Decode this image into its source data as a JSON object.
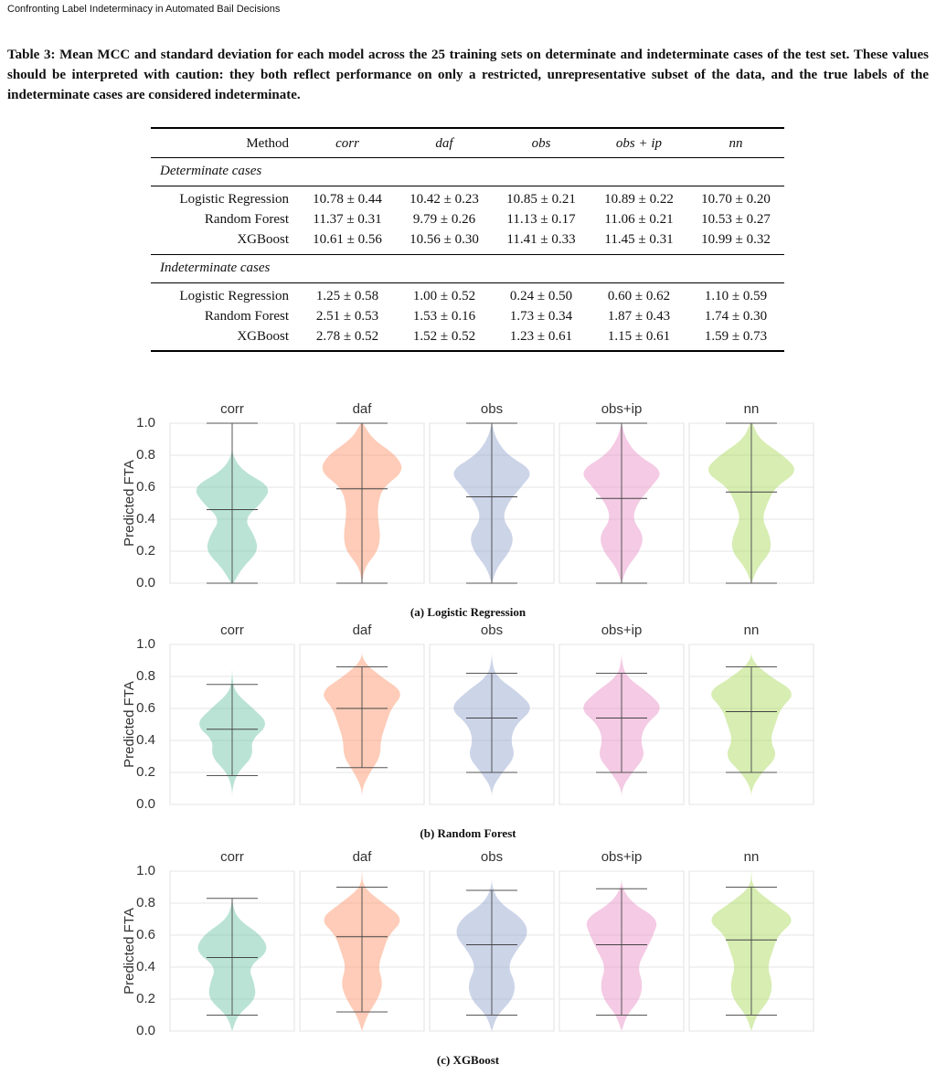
{
  "header": "Confronting Label Indeterminacy in Automated Bail Decisions",
  "table": {
    "caption": "Table 3: Mean MCC and standard deviation for each model across the 25 training sets on determinate and indeterminate cases of the test set. These values should be interpreted with caution: they both reflect performance on only a restricted, unrepresentative subset of the data, and the true labels of the indeterminate cases are considered indeterminate.",
    "columns": [
      "Method",
      "corr",
      "daf",
      "obs",
      "obs + ip",
      "nn"
    ],
    "sections": [
      {
        "title": "Determinate cases",
        "rows": [
          [
            "Logistic Regression",
            "10.78 ± 0.44",
            "10.42 ± 0.23",
            "10.85 ± 0.21",
            "10.89 ± 0.22",
            "10.70 ± 0.20"
          ],
          [
            "Random Forest",
            "11.37 ± 0.31",
            "9.79 ± 0.26",
            "11.13 ± 0.17",
            "11.06 ± 0.21",
            "10.53 ± 0.27"
          ],
          [
            "XGBoost",
            "10.61 ± 0.56",
            "10.56 ± 0.30",
            "11.41 ± 0.33",
            "11.45 ± 0.31",
            "10.99 ± 0.32"
          ]
        ]
      },
      {
        "title": "Indeterminate cases",
        "rows": [
          [
            "Logistic Regression",
            "1.25 ± 0.58",
            "1.00 ± 0.52",
            "0.24 ± 0.50",
            "0.60 ± 0.62",
            "1.10 ± 0.59"
          ],
          [
            "Random Forest",
            "2.51 ± 0.53",
            "1.53 ± 0.16",
            "1.73 ± 0.34",
            "1.87 ± 0.43",
            "1.74 ± 0.30"
          ],
          [
            "XGBoost",
            "2.78 ± 0.52",
            "1.52 ± 0.52",
            "1.23 ± 0.61",
            "1.15 ± 0.61",
            "1.59 ± 0.73"
          ]
        ]
      }
    ]
  },
  "chart_data": [
    {
      "type": "violin",
      "caption": "(a) Logistic Regression",
      "ylabel": "Predicted FTA",
      "categories": [
        "corr",
        "daf",
        "obs",
        "obs+ip",
        "nn"
      ],
      "colors": [
        "#66c2a5",
        "#fc8d62",
        "#8da0cb",
        "#e78ac3",
        "#a6d854"
      ],
      "min": [
        0,
        0,
        0,
        0,
        0
      ],
      "mean": [
        0.46,
        0.59,
        0.54,
        0.53,
        0.57
      ],
      "max": [
        1,
        1,
        1,
        1,
        1
      ],
      "density": [
        [
          0.02,
          0.2,
          0.5,
          0.42,
          0.22,
          0.55,
          0.75,
          0.2,
          0,
          0,
          0
        ],
        [
          0,
          0.05,
          0.3,
          0.35,
          0.3,
          0.3,
          0.4,
          0.8,
          0.65,
          0.2,
          0.02
        ],
        [
          0,
          0.1,
          0.35,
          0.42,
          0.2,
          0.3,
          0.55,
          0.8,
          0.3,
          0.08,
          0
        ],
        [
          0,
          0.1,
          0.35,
          0.42,
          0.2,
          0.3,
          0.55,
          0.8,
          0.3,
          0.08,
          0
        ],
        [
          0,
          0.12,
          0.38,
          0.35,
          0.2,
          0.3,
          0.45,
          0.9,
          0.6,
          0.15,
          0.02
        ]
      ],
      "ylim": [
        0,
        1
      ],
      "yticks": [
        {
          "value": 0,
          "label": "0.0"
        },
        {
          "value": 0.2,
          "label": "0.2"
        },
        {
          "value": 0.4,
          "label": "0.4"
        },
        {
          "value": 0.6,
          "label": "0.6"
        },
        {
          "value": 0.8,
          "label": "0.8"
        },
        {
          "value": 1,
          "label": "1.0"
        }
      ],
      "grid": true
    },
    {
      "type": "violin",
      "caption": "(b) Random Forest",
      "ylabel": "Predicted FTA",
      "categories": [
        "corr",
        "daf",
        "obs",
        "obs+ip",
        "nn"
      ],
      "colors": [
        "#66c2a5",
        "#fc8d62",
        "#8da0cb",
        "#e78ac3",
        "#a6d854"
      ],
      "min": [
        0.18,
        0.23,
        0.2,
        0.2,
        0.2
      ],
      "mean": [
        0.47,
        0.6,
        0.54,
        0.54,
        0.58
      ],
      "max": [
        0.75,
        0.86,
        0.82,
        0.82,
        0.86
      ],
      "density": [
        [
          0,
          0,
          0.1,
          0.4,
          0.35,
          0.7,
          0.4,
          0.05,
          0,
          0,
          0
        ],
        [
          0,
          0,
          0.15,
          0.35,
          0.35,
          0.45,
          0.55,
          0.8,
          0.35,
          0,
          0
        ],
        [
          0,
          0,
          0.2,
          0.45,
          0.35,
          0.45,
          0.8,
          0.5,
          0.08,
          0,
          0
        ],
        [
          0,
          0,
          0.2,
          0.45,
          0.35,
          0.45,
          0.8,
          0.5,
          0.08,
          0,
          0
        ],
        [
          0,
          0,
          0.2,
          0.5,
          0.35,
          0.45,
          0.55,
          0.85,
          0.35,
          0,
          0
        ]
      ],
      "ylim": [
        0,
        1
      ],
      "yticks": [
        {
          "value": 0,
          "label": "0.0"
        },
        {
          "value": 0.2,
          "label": "0.2"
        },
        {
          "value": 0.4,
          "label": "0.4"
        },
        {
          "value": 0.6,
          "label": "0.6"
        },
        {
          "value": 0.8,
          "label": "0.8"
        },
        {
          "value": 1,
          "label": "1.0"
        }
      ],
      "grid": true
    },
    {
      "type": "violin",
      "caption": "(c) XGBoost",
      "ylabel": "Predicted FTA",
      "categories": [
        "corr",
        "daf",
        "obs",
        "obs+ip",
        "nn"
      ],
      "colors": [
        "#66c2a5",
        "#fc8d62",
        "#8da0cb",
        "#e78ac3",
        "#a6d854"
      ],
      "min": [
        0.1,
        0.12,
        0.1,
        0.1,
        0.1
      ],
      "mean": [
        0.46,
        0.59,
        0.54,
        0.54,
        0.57
      ],
      "max": [
        0.83,
        0.9,
        0.88,
        0.89,
        0.9
      ],
      "density": [
        [
          0,
          0.1,
          0.45,
          0.42,
          0.3,
          0.7,
          0.55,
          0.1,
          0,
          0,
          0
        ],
        [
          0,
          0.1,
          0.3,
          0.4,
          0.3,
          0.4,
          0.5,
          0.8,
          0.4,
          0.02,
          0
        ],
        [
          0,
          0.1,
          0.4,
          0.45,
          0.3,
          0.45,
          0.7,
          0.6,
          0.15,
          0,
          0
        ],
        [
          0,
          0.1,
          0.35,
          0.4,
          0.3,
          0.45,
          0.6,
          0.7,
          0.2,
          0,
          0
        ],
        [
          0,
          0.1,
          0.35,
          0.4,
          0.3,
          0.4,
          0.5,
          0.85,
          0.4,
          0.02,
          0
        ]
      ],
      "ylim": [
        0,
        1
      ],
      "yticks": [
        {
          "value": 0,
          "label": "0.0"
        },
        {
          "value": 0.2,
          "label": "0.2"
        },
        {
          "value": 0.4,
          "label": "0.4"
        },
        {
          "value": 0.6,
          "label": "0.6"
        },
        {
          "value": 0.8,
          "label": "0.8"
        },
        {
          "value": 1,
          "label": "1.0"
        }
      ],
      "grid": true
    }
  ]
}
